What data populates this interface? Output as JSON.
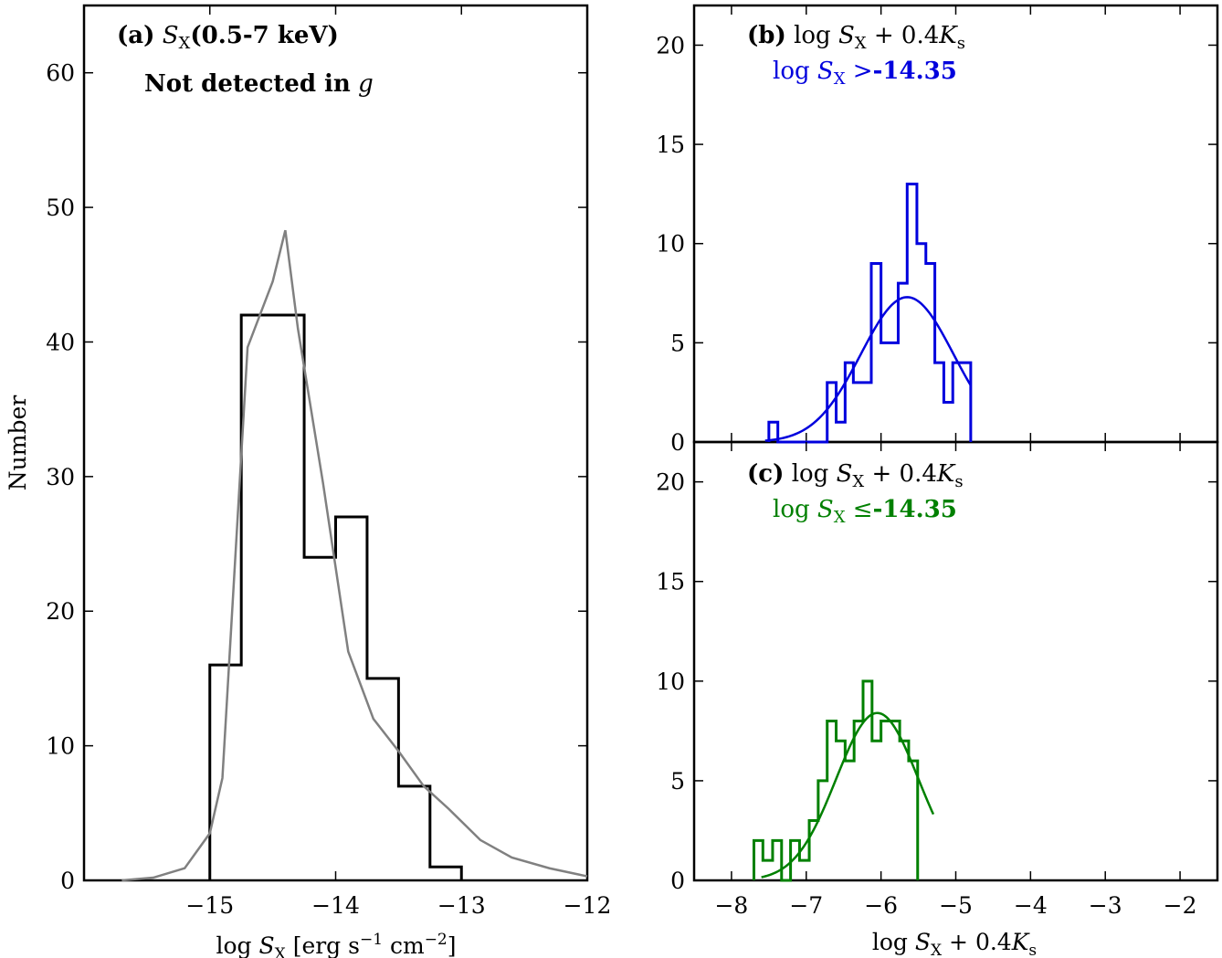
{
  "figure": {
    "ylabel": "Number",
    "panel_a": {
      "label": "(a)",
      "sx_symbol": "S",
      "sx_sub": "X",
      "band": "(0.5-7 keV)",
      "note_text": "Not detected in",
      "note_var": "g",
      "xlabel_prefix": "log",
      "xlabel_sym": "S",
      "xlabel_sub": "X",
      "xlabel_units": "[erg s",
      "xlabel_exp1": "−1",
      "xlabel_cm": " cm",
      "xlabel_exp2": "−2",
      "xlabel_close": "]"
    },
    "panel_b": {
      "label": "(b)",
      "expr_log": "log",
      "expr_S": "S",
      "expr_sub": "X",
      "expr_plus": " + 0.4",
      "expr_K": "K",
      "expr_Ksub": "s",
      "cond_log": "log",
      "cond_S": "S",
      "cond_sub": "X",
      "cond_op": " >",
      "cond_val": "-14.35",
      "color": "#0000dd"
    },
    "panel_c": {
      "label": "(c)",
      "expr_log": "log",
      "expr_S": "S",
      "expr_sub": "X",
      "expr_plus": " + 0.4",
      "expr_K": "K",
      "expr_Ksub": "s",
      "cond_log": "log",
      "cond_S": "S",
      "cond_sub": "X",
      "cond_op": " ≤",
      "cond_val": "-14.35",
      "color": "#008000",
      "xlabel_log": "log",
      "xlabel_S": "S",
      "xlabel_sub": "X",
      "xlabel_plus": " + 0.4",
      "xlabel_K": "K",
      "xlabel_Ksub": "s"
    }
  },
  "chart_data": [
    {
      "panel": "a",
      "type": "histogram",
      "xlim": [
        -16.0,
        -12.0
      ],
      "ylim": [
        0,
        65
      ],
      "xticks": [
        -15,
        -14,
        -13,
        -12
      ],
      "xtick_labels": [
        "−15",
        "−14",
        "−13",
        "−12"
      ],
      "yticks": [
        0,
        10,
        20,
        30,
        40,
        50,
        60
      ],
      "ytick_labels": [
        "0",
        "10",
        "20",
        "30",
        "40",
        "50",
        "60"
      ],
      "hist_color": "#000000",
      "bin_edges": [
        -15.0,
        -14.75,
        -14.5,
        -14.25,
        -14.0,
        -13.75,
        -13.5,
        -13.25,
        -13.0
      ],
      "counts": [
        16,
        42,
        42,
        24,
        27,
        15,
        7,
        1
      ],
      "model": {
        "color": "#808080",
        "x": [
          -15.7,
          -15.45,
          -15.2,
          -15.0,
          -14.9,
          -14.7,
          -14.5,
          -14.4,
          -14.3,
          -14.1,
          -13.9,
          -13.7,
          -13.5,
          -13.3,
          -13.1,
          -12.85,
          -12.6,
          -12.3,
          -12.0
        ],
        "y": [
          0.0,
          0.2,
          0.9,
          3.5,
          7.6,
          39.6,
          44.5,
          48.3,
          41.0,
          29.5,
          17.0,
          12.0,
          9.6,
          7.0,
          5.3,
          3.0,
          1.7,
          0.9,
          0.3
        ]
      }
    },
    {
      "panel": "b",
      "type": "histogram",
      "xlim": [
        -8.5,
        -1.5
      ],
      "ylim": [
        0,
        22
      ],
      "xticks": [
        -8,
        -7,
        -6,
        -5,
        -4,
        -3,
        -2
      ],
      "yticks": [
        0,
        5,
        10,
        15,
        20
      ],
      "ytick_labels": [
        "0",
        "5",
        "10",
        "15",
        "20"
      ],
      "bin_edges": [
        -7.5,
        -7.38,
        -6.72,
        -6.6,
        -6.48,
        -6.37,
        -6.25,
        -6.13,
        -6.0,
        -5.9,
        -5.77,
        -5.65,
        -5.52,
        -5.4,
        -5.28,
        -5.16,
        -5.04,
        -4.92,
        -4.8
      ],
      "counts": [
        1,
        0,
        3,
        1,
        4,
        3,
        3,
        9,
        5,
        5,
        8,
        13,
        10,
        9,
        4,
        2,
        4,
        4
      ],
      "fit_mu": -5.65,
      "fit_sigma": 0.62,
      "fit_amp": 7.3,
      "fit_range": [
        -7.55,
        -4.8
      ]
    },
    {
      "panel": "c",
      "type": "histogram",
      "xlim": [
        -8.5,
        -1.5
      ],
      "ylim": [
        0,
        22
      ],
      "xticks": [
        -8,
        -7,
        -6,
        -5,
        -4,
        -3,
        -2
      ],
      "xtick_labels": [
        "−8",
        "−7",
        "−6",
        "−5",
        "−4",
        "−3",
        "−2"
      ],
      "yticks": [
        0,
        5,
        10,
        15,
        20
      ],
      "ytick_labels": [
        "0",
        "5",
        "10",
        "15",
        "20"
      ],
      "bin_edges": [
        -7.7,
        -7.58,
        -7.45,
        -7.33,
        -7.21,
        -7.09,
        -6.96,
        -6.84,
        -6.72,
        -6.6,
        -6.48,
        -6.36,
        -6.24,
        -6.12,
        -6.0,
        -5.87,
        -5.75,
        -5.63,
        -5.51
      ],
      "counts": [
        2,
        1,
        2,
        0,
        2,
        1,
        3,
        5,
        8,
        7,
        6,
        8,
        10,
        7,
        8,
        8,
        7,
        6
      ],
      "fit_mu": -6.05,
      "fit_sigma": 0.55,
      "fit_amp": 8.4,
      "fit_range": [
        -7.6,
        -5.3
      ]
    }
  ]
}
